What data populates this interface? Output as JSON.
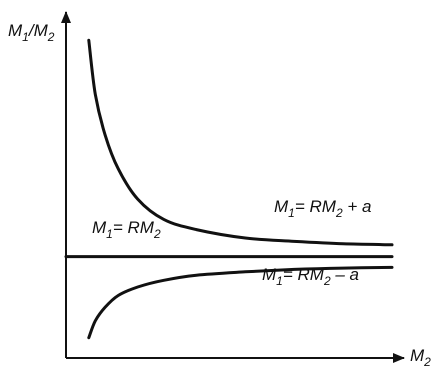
{
  "chart_data": {
    "type": "line",
    "ylabel": {
      "main": "M",
      "sub1": "1",
      "slash": "/M",
      "sub2": "2"
    },
    "xlabel": {
      "main": "M",
      "sub": "2"
    },
    "xlim": [
      0,
      10
    ],
    "ylim": [
      0,
      10
    ],
    "colors": {
      "line": "#111111",
      "axis": "#111111"
    },
    "series": [
      {
        "label": {
          "lhs": "M",
          "lhs_sub": "1",
          "eq": "= RM",
          "rhs_sub": "2",
          "tail": " + a"
        },
        "x": [
          0.7,
          0.9,
          1.2,
          1.6,
          2.2,
          3.0,
          4.0,
          5.5,
          7.0,
          8.5,
          10.0
        ],
        "y": [
          9.4,
          7.8,
          6.6,
          5.6,
          4.7,
          4.1,
          3.8,
          3.55,
          3.45,
          3.38,
          3.35
        ]
      },
      {
        "label": {
          "lhs": "M",
          "lhs_sub": "1",
          "eq": "= RM",
          "rhs_sub": "2",
          "tail": ""
        },
        "x": [
          0.0,
          10.0
        ],
        "y": [
          3.0,
          3.0
        ]
      },
      {
        "label": {
          "lhs": "M",
          "lhs_sub": "1",
          "eq": "= RM",
          "rhs_sub": "2",
          "tail": " – a"
        },
        "x": [
          0.7,
          0.9,
          1.2,
          1.6,
          2.2,
          3.0,
          4.0,
          5.5,
          7.0,
          8.5,
          10.0
        ],
        "y": [
          0.6,
          1.1,
          1.5,
          1.85,
          2.1,
          2.3,
          2.45,
          2.55,
          2.62,
          2.66,
          2.68
        ]
      }
    ]
  }
}
